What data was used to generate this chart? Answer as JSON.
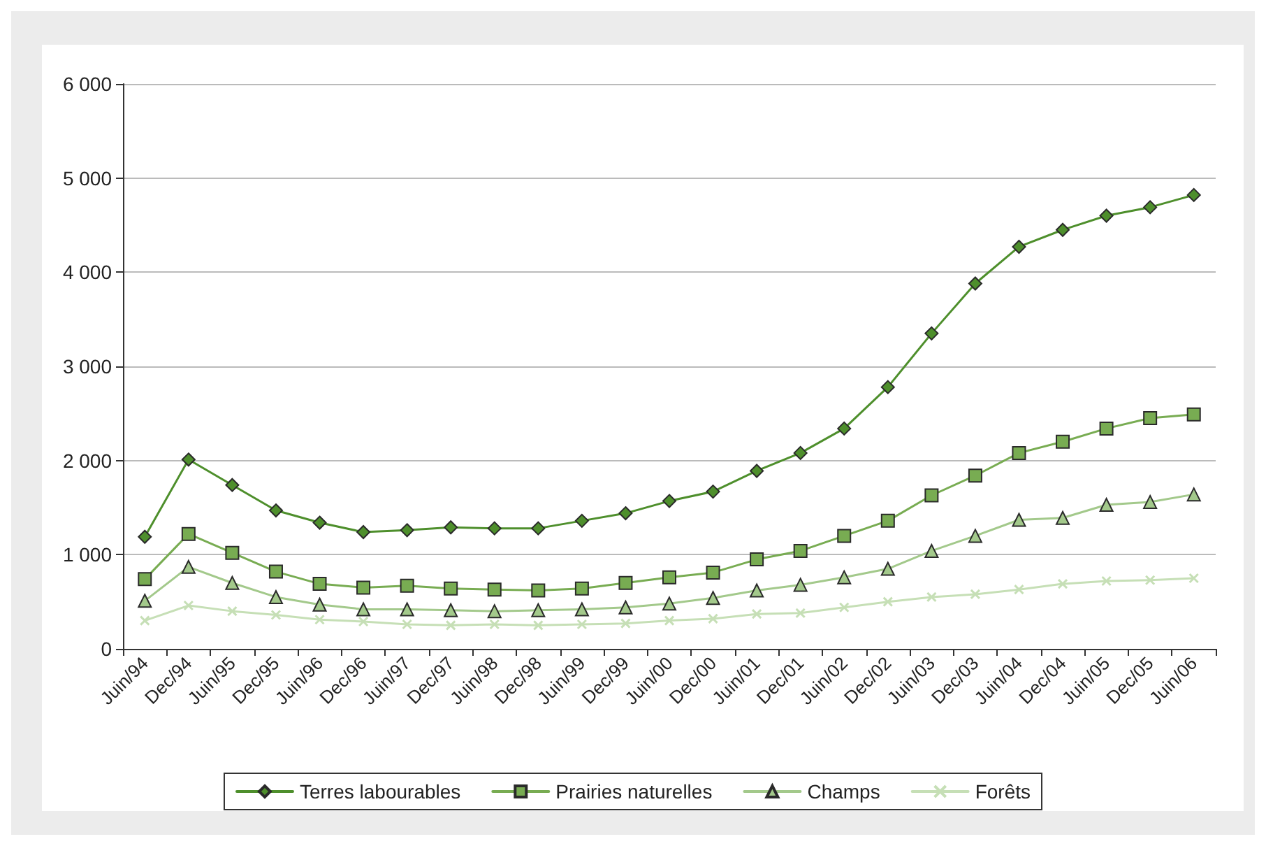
{
  "chart_data": {
    "type": "line",
    "categories": [
      "Juin/94",
      "Dec/94",
      "Juin/95",
      "Dec/95",
      "Juin/96",
      "Dec/96",
      "Juin/97",
      "Dec/97",
      "Juin/98",
      "Dec/98",
      "Juin/99",
      "Dec/99",
      "Juin/00",
      "Dec/00",
      "Juin/01",
      "Dec/01",
      "Juin/02",
      "Dec/02",
      "Juin/03",
      "Dec/03",
      "Juin/04",
      "Dec/04",
      "Juin/05",
      "Dec/05",
      "Juin/06"
    ],
    "series": [
      {
        "name": "Terres labourables",
        "color": "#4e8f2c",
        "marker": "diamond",
        "values": [
          1190,
          2010,
          1740,
          1470,
          1340,
          1240,
          1260,
          1290,
          1280,
          1280,
          1360,
          1440,
          1570,
          1670,
          1890,
          2080,
          2340,
          2780,
          3350,
          3880,
          4270,
          4450,
          4600,
          4690,
          4820
        ]
      },
      {
        "name": "Prairies naturelles",
        "color": "#78ac52",
        "marker": "square",
        "values": [
          740,
          1220,
          1020,
          820,
          690,
          650,
          670,
          640,
          630,
          620,
          640,
          700,
          760,
          810,
          950,
          1040,
          1200,
          1360,
          1630,
          1840,
          2080,
          2200,
          2340,
          2450,
          2490
        ]
      },
      {
        "name": "Champs",
        "color": "#a3c98b",
        "marker": "triangle",
        "values": [
          510,
          870,
          700,
          550,
          470,
          420,
          420,
          410,
          400,
          410,
          420,
          440,
          480,
          540,
          620,
          680,
          760,
          850,
          1040,
          1200,
          1370,
          1390,
          1530,
          1560,
          1640
        ]
      },
      {
        "name": "Forêts",
        "color": "#c6dfb6",
        "marker": "cross",
        "values": [
          300,
          460,
          400,
          360,
          310,
          290,
          260,
          250,
          260,
          250,
          260,
          270,
          300,
          320,
          370,
          380,
          440,
          500,
          550,
          580,
          630,
          690,
          720,
          730,
          750
        ]
      }
    ],
    "ylim": [
      0,
      6000
    ],
    "yticks": [
      0,
      {
        "value": 1000,
        "label": "1 000"
      },
      {
        "value": 2000,
        "label": "2 000"
      },
      {
        "value": 3000,
        "label": "3 000"
      },
      {
        "value": 4000,
        "label": "4 000"
      },
      {
        "value": 5000,
        "label": "5 000"
      },
      {
        "value": 6000,
        "label": "6 000"
      }
    ],
    "grid": "y",
    "legend": "bottom",
    "line_style": "solid"
  }
}
